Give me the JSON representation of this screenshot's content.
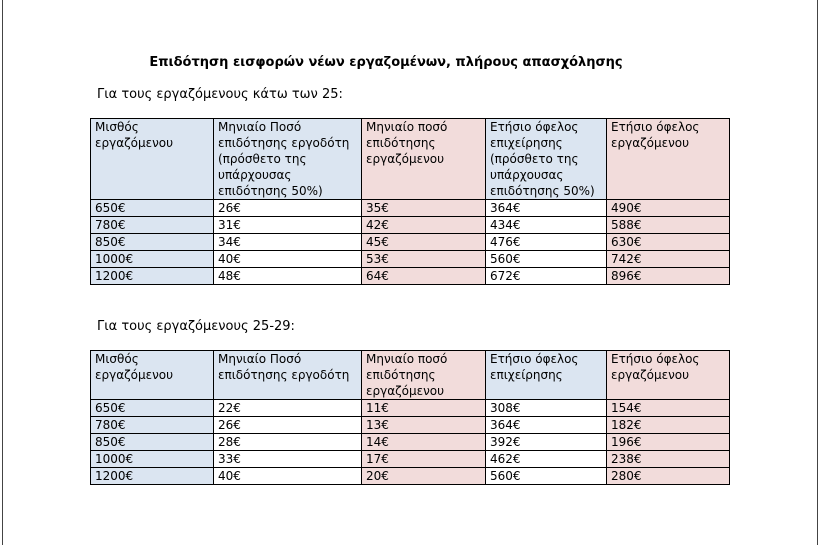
{
  "title": "Επιδότηση εισφορών νέων εργαζομένων, πλήρους απασχόλησης",
  "sections": [
    {
      "subtitle": "Για τους εργαζόμενους κάτω των 25:",
      "headers": [
        "Μισθός εργαζόμενου",
        "Μηνιαίο Ποσό επιδότησης εργοδότη (πρόσθετο της υπάρχουσας επιδότησης 50%)",
        "Μηνιαίο ποσό επιδότησης εργαζόμενου",
        "Ετήσιο όφελος επιχείρησης (πρόσθετο της υπάρχουσας επιδότησης 50%)",
        "Ετήσιο όφελος εργαζόμενου"
      ],
      "rows": [
        [
          "650€",
          "26€",
          "35€",
          "364€",
          "490€"
        ],
        [
          "780€",
          "31€",
          "42€",
          "434€",
          "588€"
        ],
        [
          "850€",
          "34€",
          "45€",
          "476€",
          "630€"
        ],
        [
          "1000€",
          "40€",
          "53€",
          "560€",
          "742€"
        ],
        [
          "1200€",
          "48€",
          "64€",
          "672€",
          "896€"
        ]
      ]
    },
    {
      "subtitle": "Για τους εργαζόμενους 25-29:",
      "headers": [
        "Μισθός εργαζόμενου",
        "Μηνιαίο Ποσό επιδότησης εργοδότη",
        "Μηνιαίο ποσό επιδότησης εργαζόμενου",
        "Ετήσιο όφελος επιχείρησης",
        "Ετήσιο όφελος εργαζόμενου"
      ],
      "rows": [
        [
          "650€",
          "22€",
          "11€",
          "308€",
          "154€"
        ],
        [
          "780€",
          "26€",
          "13€",
          "364€",
          "182€"
        ],
        [
          "850€",
          "28€",
          "14€",
          "392€",
          "196€"
        ],
        [
          "1000€",
          "33€",
          "17€",
          "462€",
          "238€"
        ],
        [
          "1200€",
          "40€",
          "20€",
          "560€",
          "280€"
        ]
      ]
    }
  ],
  "colors": {
    "blue": "#dbe5f1",
    "pink": "#f2dcdb"
  }
}
